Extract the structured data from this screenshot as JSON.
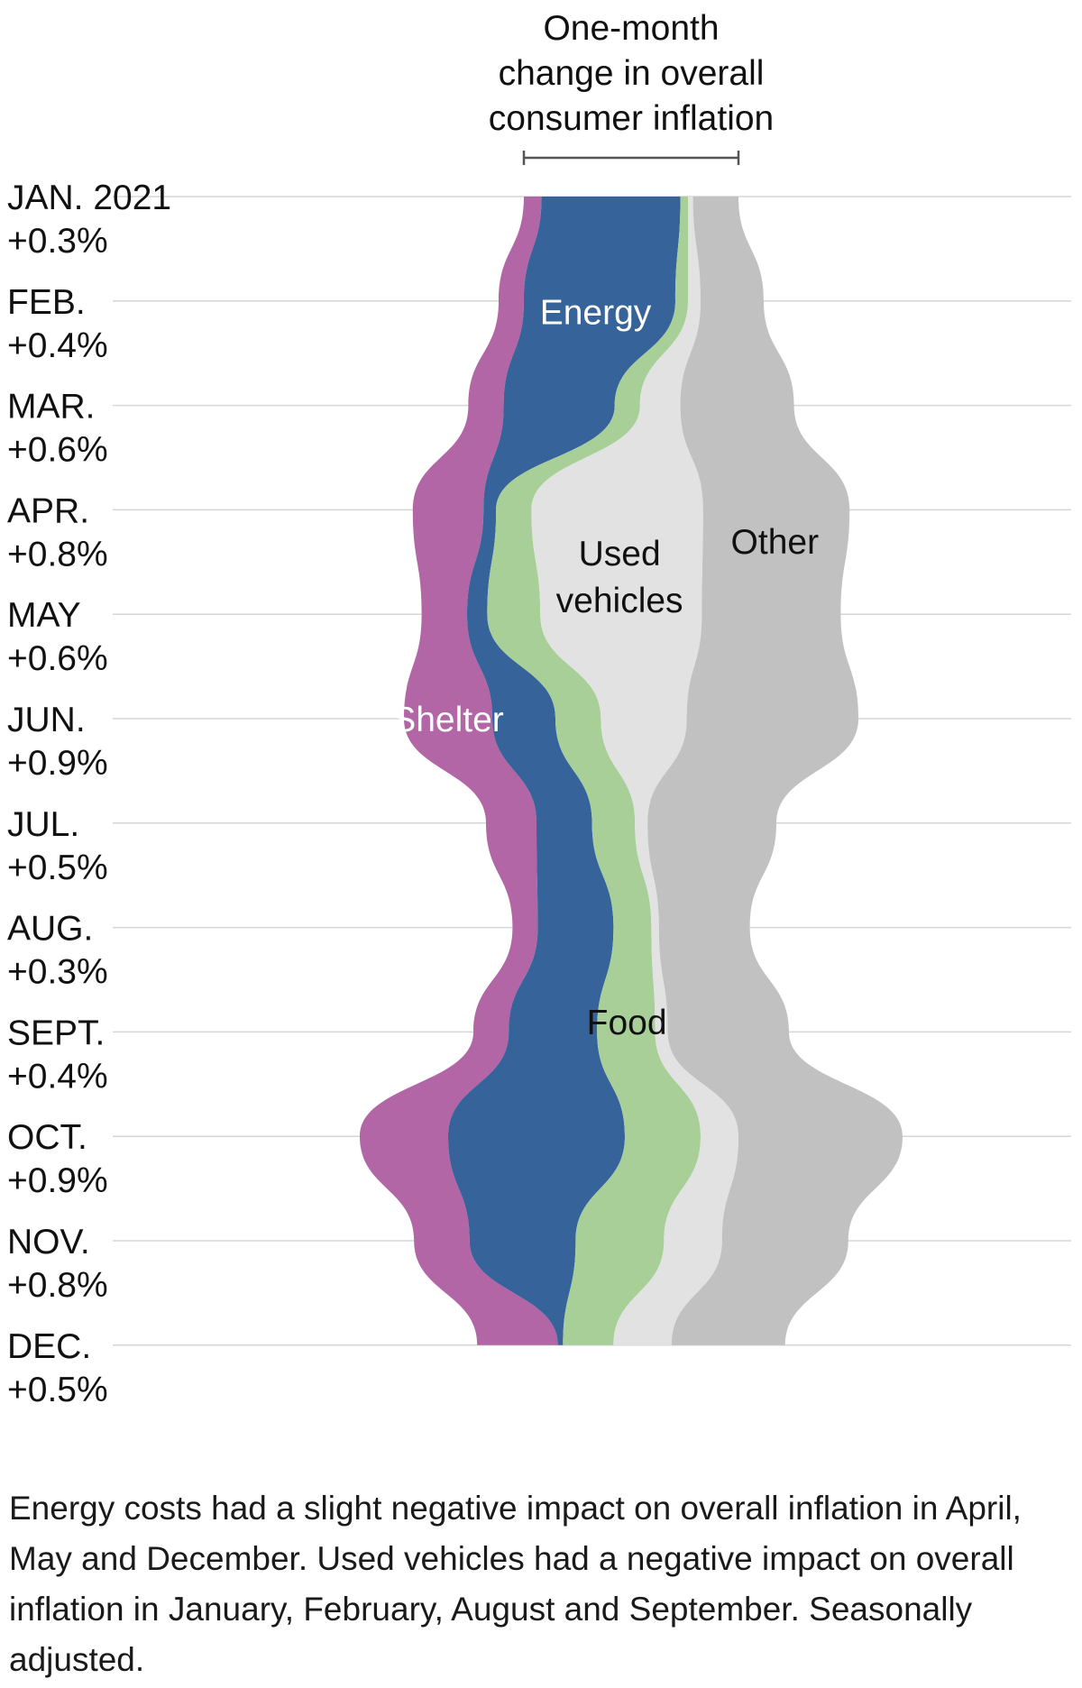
{
  "chart_data": {
    "type": "area",
    "subtype": "streamgraph",
    "title": [
      "One-month",
      "change in overall",
      "consumer inflation"
    ],
    "months": [
      "JAN. 2021",
      "FEB.",
      "MAR.",
      "APR.",
      "MAY",
      "JUN.",
      "JUL.",
      "AUG.",
      "SEPT.",
      "OCT.",
      "NOV.",
      "DEC."
    ],
    "overall_change": [
      "+0.3%",
      "+0.4%",
      "+0.6%",
      "+0.8%",
      "+0.6%",
      "+0.9%",
      "+0.5%",
      "+0.3%",
      "+0.4%",
      "+0.9%",
      "+0.8%",
      "+0.5%"
    ],
    "series": [
      {
        "name": "Shelter",
        "color": "#b266a6",
        "label_color": "#ffffff",
        "values": [
          0.07,
          0.1,
          0.14,
          0.28,
          0.18,
          0.35,
          0.2,
          0.1,
          0.14,
          0.35,
          0.22,
          0.32
        ]
      },
      {
        "name": "Energy",
        "color": "#36639a",
        "label_color": "#ffffff",
        "values": [
          0.55,
          0.6,
          0.44,
          -0.05,
          -0.08,
          0.25,
          0.22,
          0.3,
          0.35,
          0.7,
          0.42,
          -0.02
        ]
      },
      {
        "name": "Food",
        "color": "#a8cf97",
        "label_color": "#111111",
        "values": [
          0.03,
          0.05,
          0.1,
          0.14,
          0.21,
          0.18,
          0.17,
          0.15,
          0.23,
          0.3,
          0.35,
          0.2
        ]
      },
      {
        "name": "Used vehicles",
        "color": "#e2e2e2",
        "label_color": "#111111",
        "values": [
          -0.02,
          -0.05,
          0.16,
          0.68,
          0.64,
          0.34,
          0.05,
          -0.03,
          -0.05,
          0.15,
          0.23,
          0.23
        ]
      },
      {
        "name": "Other",
        "color": "#c1c1c1",
        "label_color": "#111111",
        "values": [
          0.18,
          0.25,
          0.45,
          0.58,
          0.55,
          0.68,
          0.51,
          0.36,
          0.48,
          0.65,
          0.5,
          0.45
        ]
      }
    ],
    "xlabel": "",
    "ylabel": "",
    "orientation": "vertical",
    "legend": "inline labels"
  },
  "caption": "Energy costs had a slight negative impact on overall inflation in April, May and December. Used vehicles had a negative impact on overall inflation in January, February, August and September. Seasonally adjusted."
}
